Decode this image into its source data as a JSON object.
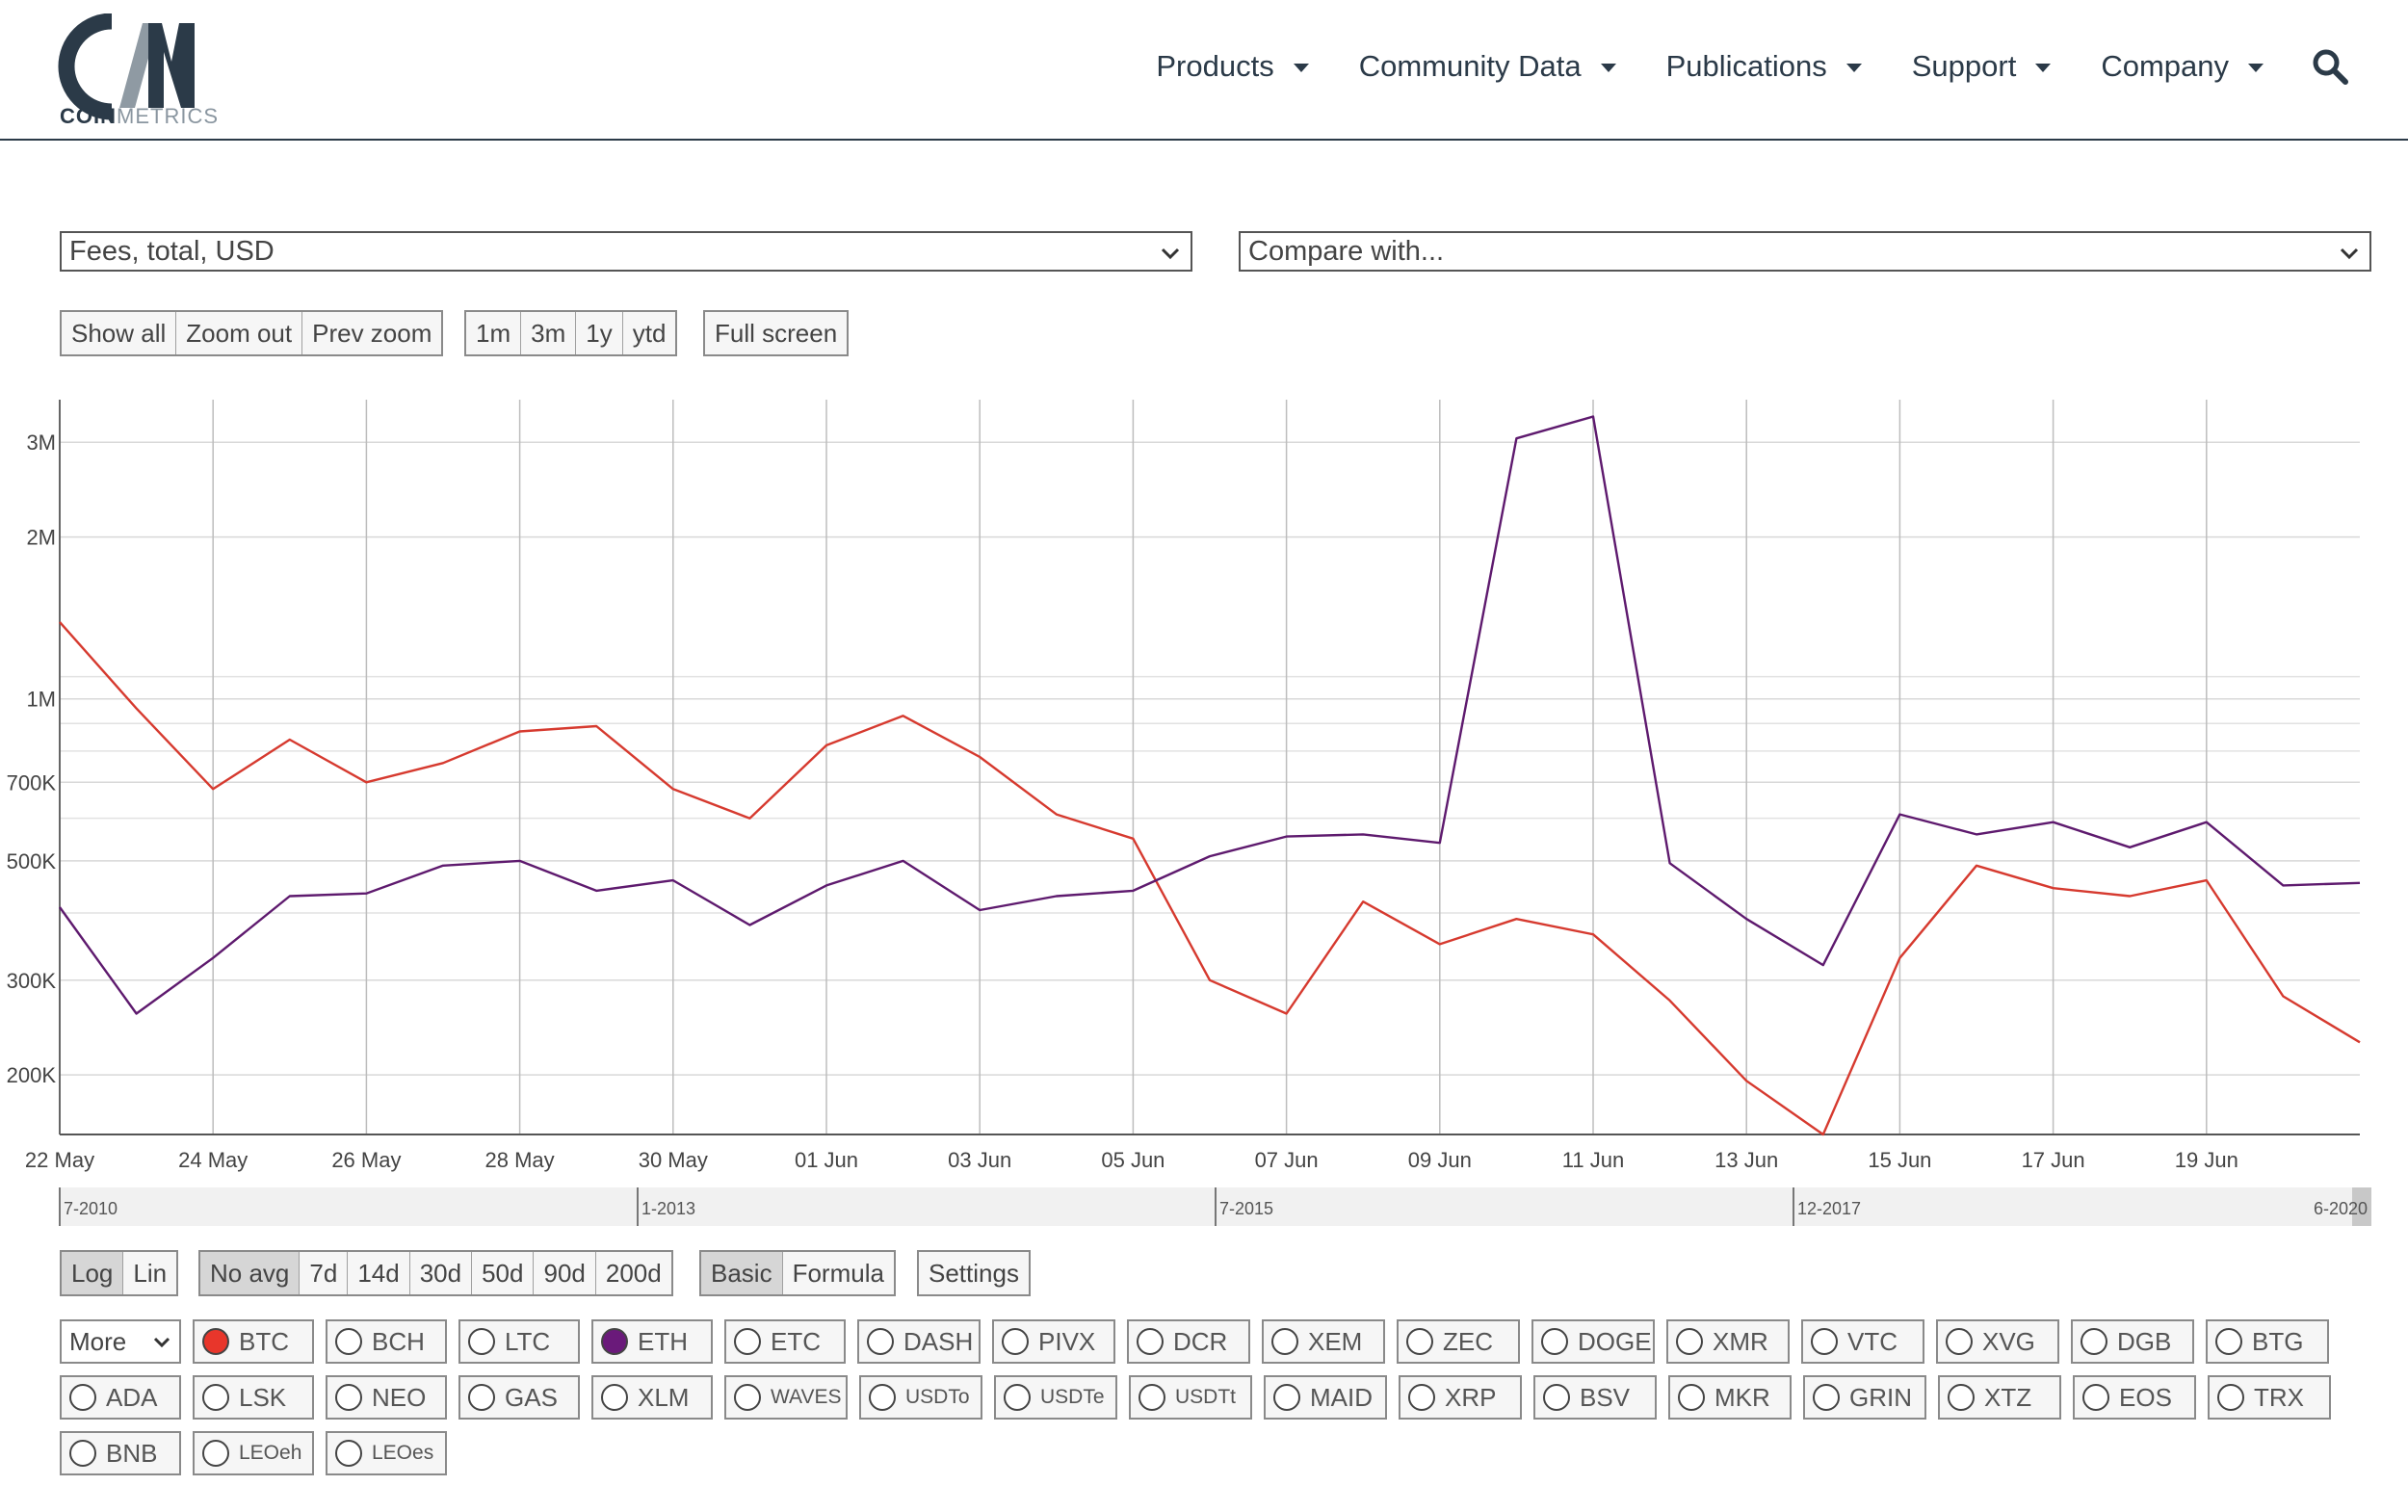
{
  "brand": {
    "logo_word_bold": "COIN",
    "logo_word_thin": "METRICS"
  },
  "nav": [
    {
      "label": "Products"
    },
    {
      "label": "Community Data"
    },
    {
      "label": "Publications"
    },
    {
      "label": "Support"
    },
    {
      "label": "Company"
    }
  ],
  "metric_select": {
    "value": "Fees, total, USD"
  },
  "compare_select": {
    "value": "Compare with..."
  },
  "zoom_buttons": [
    "Show all",
    "Zoom out",
    "Prev zoom"
  ],
  "period_buttons": [
    "1m",
    "3m",
    "1y",
    "ytd"
  ],
  "fullscreen_label": "Full screen",
  "scale_buttons": [
    {
      "label": "Log",
      "active": true
    },
    {
      "label": "Lin",
      "active": false
    }
  ],
  "avg_buttons": [
    {
      "label": "No avg",
      "active": true
    },
    {
      "label": "7d"
    },
    {
      "label": "14d"
    },
    {
      "label": "30d"
    },
    {
      "label": "50d"
    },
    {
      "label": "90d"
    },
    {
      "label": "200d"
    }
  ],
  "mode_buttons": [
    {
      "label": "Basic",
      "active": true
    },
    {
      "label": "Formula",
      "active": false
    }
  ],
  "settings_label": "Settings",
  "more_label": "More",
  "assets": [
    [
      {
        "label": "BTC",
        "checked": true,
        "color": "#e8362b"
      },
      {
        "label": "BCH"
      },
      {
        "label": "LTC"
      },
      {
        "label": "ETH",
        "checked": true,
        "color": "#6a1a7a"
      },
      {
        "label": "ETC"
      },
      {
        "label": "DASH"
      },
      {
        "label": "PIVX"
      },
      {
        "label": "DCR"
      },
      {
        "label": "XEM"
      },
      {
        "label": "ZEC"
      },
      {
        "label": "DOGE"
      },
      {
        "label": "XMR"
      },
      {
        "label": "VTC"
      },
      {
        "label": "XVG"
      },
      {
        "label": "DGB"
      },
      {
        "label": "BTG"
      }
    ],
    [
      {
        "label": "ADA"
      },
      {
        "label": "LSK"
      },
      {
        "label": "NEO"
      },
      {
        "label": "GAS"
      },
      {
        "label": "XLM"
      },
      {
        "label": "WAVES",
        "small": true
      },
      {
        "label": "USDTo",
        "small": true
      },
      {
        "label": "USDTe",
        "small": true
      },
      {
        "label": "USDTt",
        "small": true
      },
      {
        "label": "MAID"
      },
      {
        "label": "XRP"
      },
      {
        "label": "BSV"
      },
      {
        "label": "MKR"
      },
      {
        "label": "GRIN"
      },
      {
        "label": "XTZ"
      },
      {
        "label": "EOS"
      },
      {
        "label": "TRX"
      }
    ],
    [
      {
        "label": "BNB"
      },
      {
        "label": "LEOeh",
        "small": true
      },
      {
        "label": "LEOes",
        "small": true
      }
    ]
  ],
  "chart_data": {
    "type": "line",
    "scale": "log",
    "ylabel": "Fees, total, USD",
    "x": [
      "22 May",
      "23 May",
      "24 May",
      "25 May",
      "26 May",
      "27 May",
      "28 May",
      "29 May",
      "30 May",
      "31 May",
      "01 Jun",
      "02 Jun",
      "03 Jun",
      "04 Jun",
      "05 Jun",
      "06 Jun",
      "07 Jun",
      "08 Jun",
      "09 Jun",
      "10 Jun",
      "11 Jun",
      "12 Jun",
      "13 Jun",
      "14 Jun",
      "15 Jun",
      "16 Jun",
      "17 Jun",
      "18 Jun",
      "19 Jun",
      "20 Jun",
      "21 Jun"
    ],
    "x_tick_labels": [
      "22 May",
      "24 May",
      "26 May",
      "28 May",
      "30 May",
      "01 Jun",
      "03 Jun",
      "05 Jun",
      "07 Jun",
      "09 Jun",
      "11 Jun",
      "13 Jun",
      "15 Jun",
      "17 Jun",
      "19 Jun"
    ],
    "y_ticks": [
      {
        "value": 200000,
        "label": "200K"
      },
      {
        "value": 300000,
        "label": "300K"
      },
      {
        "value": 500000,
        "label": "500K"
      },
      {
        "value": 700000,
        "label": "700K"
      },
      {
        "value": 1000000,
        "label": "1M"
      },
      {
        "value": 2000000,
        "label": "2M"
      },
      {
        "value": 3000000,
        "label": "3M"
      }
    ],
    "y_minor_grid": [
      400000,
      600000,
      800000,
      900000,
      1100000
    ],
    "ylim": [
      155000,
      3600000
    ],
    "series": [
      {
        "name": "BTC",
        "color": "#d63a2f",
        "values": [
          1390000,
          960000,
          680000,
          840000,
          700000,
          760000,
          870000,
          890000,
          680000,
          600000,
          820000,
          930000,
          780000,
          610000,
          550000,
          300000,
          260000,
          420000,
          350000,
          390000,
          365000,
          275000,
          195000,
          155000,
          330000,
          490000,
          445000,
          430000,
          460000,
          280000,
          230000
        ]
      },
      {
        "name": "ETH",
        "color": "#5e1a6e",
        "values": [
          410000,
          260000,
          330000,
          430000,
          435000,
          490000,
          500000,
          440000,
          460000,
          380000,
          450000,
          500000,
          405000,
          430000,
          440000,
          510000,
          555000,
          560000,
          540000,
          3050000,
          3350000,
          495000,
          390000,
          320000,
          610000,
          560000,
          590000,
          530000,
          590000,
          450000,
          455000
        ]
      }
    ],
    "range_selector_labels": [
      "7-2010",
      "1-2013",
      "7-2015",
      "12-2017",
      "6-2020"
    ]
  }
}
